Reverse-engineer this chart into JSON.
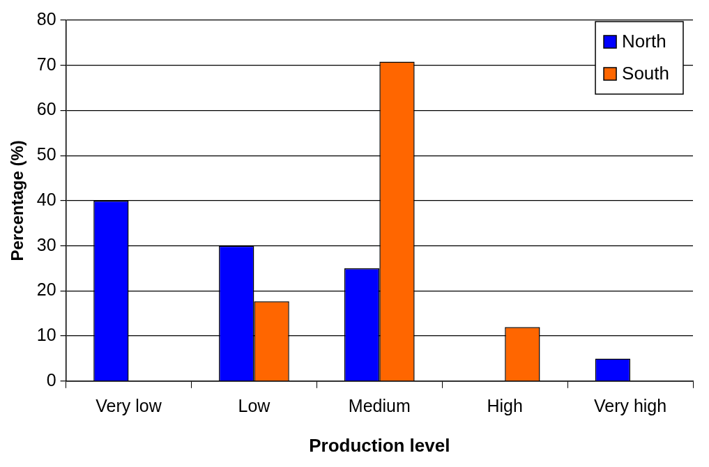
{
  "chart_data": {
    "type": "bar",
    "xlabel": "Production level",
    "ylabel": "Percentage (%)",
    "categories": [
      "Very low",
      "Low",
      "Medium",
      "High",
      "Very high"
    ],
    "series": [
      {
        "name": "North",
        "color": "#0000ff",
        "values": [
          40,
          30,
          25,
          0,
          5
        ]
      },
      {
        "name": "South",
        "color": "#ff6600",
        "values": [
          0,
          17.7,
          70.8,
          12,
          0
        ]
      }
    ],
    "ylim": [
      0,
      80
    ],
    "yticks": [
      0,
      10,
      20,
      30,
      40,
      50,
      60,
      70,
      80
    ],
    "grid": "y",
    "legend": "top right"
  }
}
